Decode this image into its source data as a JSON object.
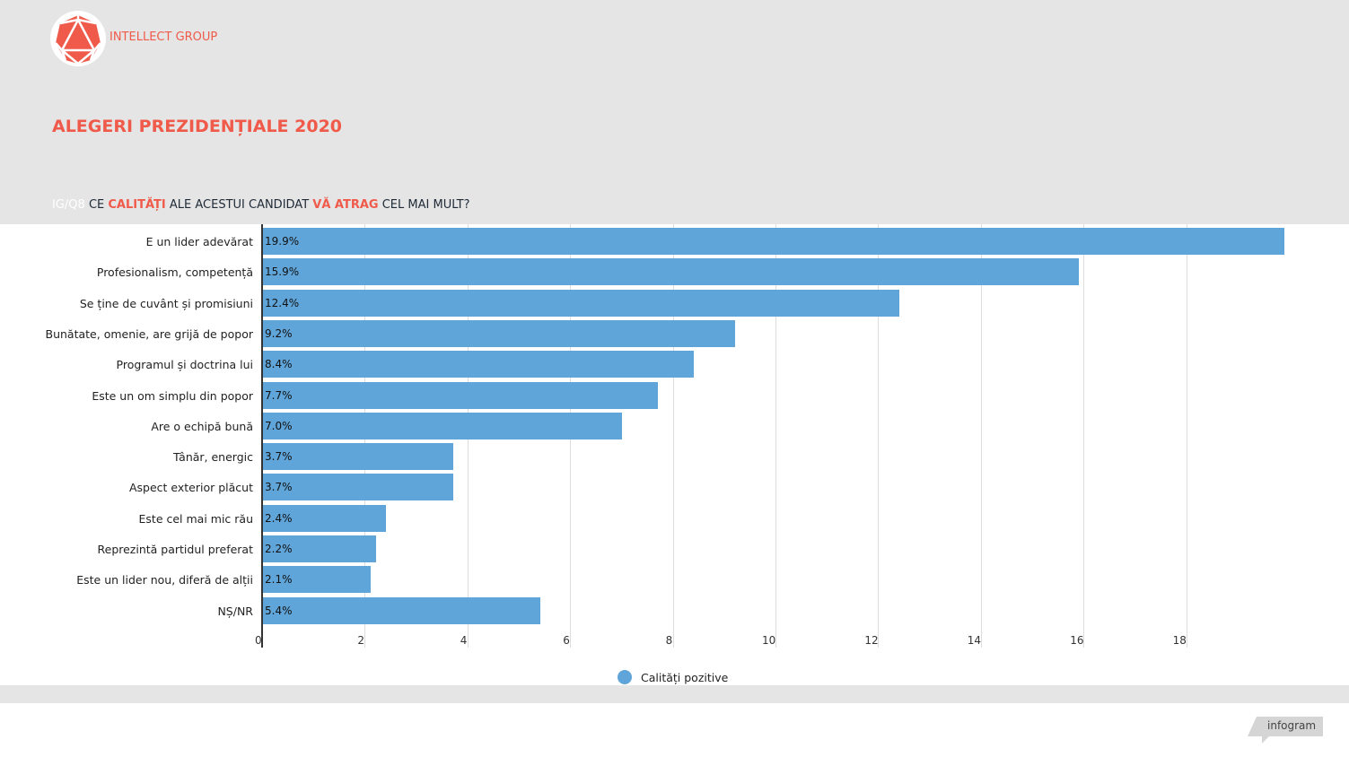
{
  "header": {
    "brand": "INTELLECT GROUP",
    "title": "ALEGERI PREZIDENȚIALE 2020",
    "question": {
      "prefix": "IG/Q8",
      "p1": "CE",
      "h1": "CALITĂȚI",
      "p2": "ALE ACESTUI CANDIDAT",
      "h2": "VĂ ATRAG",
      "p3": "CEL MAI MULT?"
    }
  },
  "chart_data": {
    "type": "bar",
    "orientation": "horizontal",
    "categories": [
      "E un lider adevărat",
      "Profesionalism, competență",
      "Se ține de cuvânt și promisiuni",
      "Bunătate, omenie, are grijă de popor",
      "Programul și doctrina lui",
      "Este un om simplu din popor",
      "Are o echipă bună",
      "Tânăr, energic",
      "Aspect exterior plăcut",
      "Este cel mai mic rău",
      "Reprezintă partidul preferat",
      "Este un lider nou, diferă de alții",
      "NȘ/NR"
    ],
    "series": [
      {
        "name": "Calități pozitive",
        "values": [
          19.9,
          15.9,
          12.4,
          9.2,
          8.4,
          7.7,
          7.0,
          3.7,
          3.7,
          2.4,
          2.2,
          2.1,
          5.4
        ],
        "labels": [
          "19.9%",
          "15.9%",
          "12.4%",
          "9.2%",
          "8.4%",
          "7.7%",
          "7.0%",
          "3.7%",
          "3.7%",
          "2.4%",
          "2.2%",
          "2.1%",
          "5.4%"
        ],
        "color": "#5fa5d9"
      }
    ],
    "xticks": [
      "0",
      "2",
      "4",
      "6",
      "8",
      "10",
      "12",
      "14",
      "16",
      "18"
    ],
    "xlim": [
      0,
      20
    ],
    "grid": true,
    "legend_position": "bottom-center"
  },
  "footer": {
    "badge": "infogram"
  }
}
